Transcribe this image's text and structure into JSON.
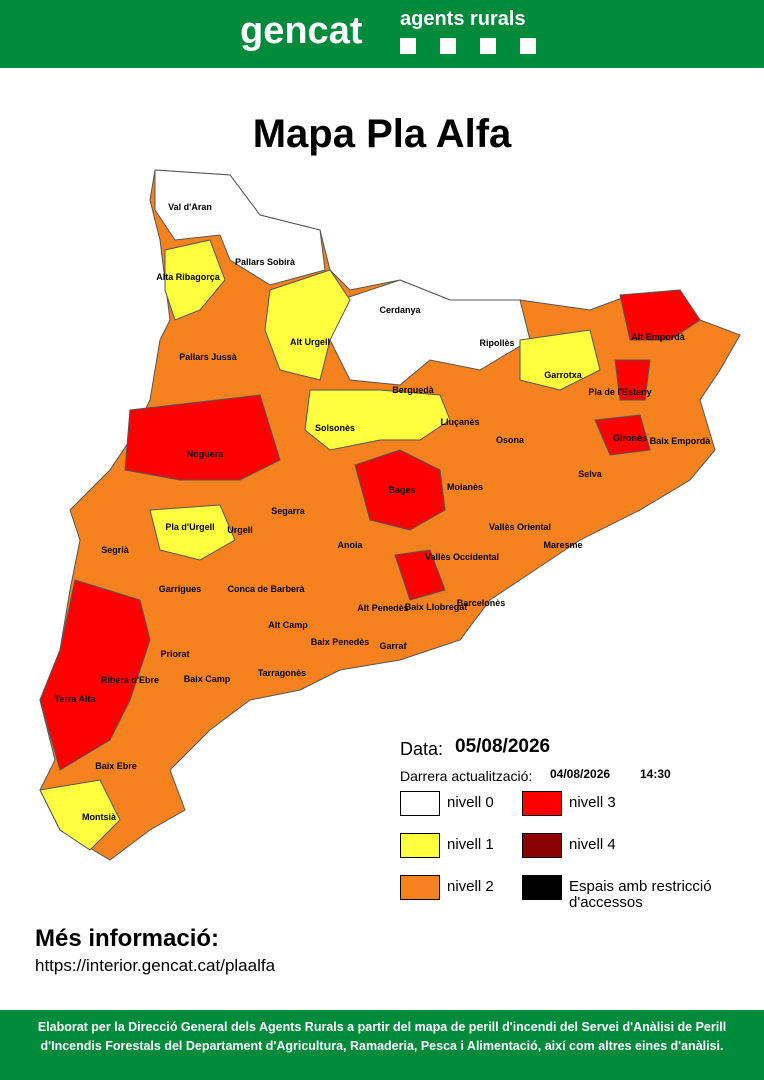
{
  "header": {
    "logo": "gencat",
    "section": "agents rurals"
  },
  "title": "Mapa Pla Alfa",
  "map": {
    "regions": [
      "Val d'Aran",
      "Pallars Sobirà",
      "Alta Ribagorça",
      "Cerdanya",
      "Alt Urgell",
      "Pallars Jussà",
      "Ripollès",
      "Alt Empordà",
      "Garrotxa",
      "Pla de l'Estany",
      "Berguedà",
      "Solsonès",
      "Lluçanès",
      "Osona",
      "Gironès",
      "Baix Empordà",
      "Noguera",
      "Bages",
      "Moianès",
      "Selva",
      "Segarra",
      "Pla d'Urgell",
      "Urgell",
      "Vallès Oriental",
      "Segrià",
      "Anoia",
      "Vallès Occidental",
      "Maresme",
      "Garrigues",
      "Conca de Barberà",
      "Alt Penedès",
      "Baix Llobregat",
      "Barcelonès",
      "Alt Camp",
      "Baix Penedès",
      "Garraf",
      "Priorat",
      "Ribera d'Ebre",
      "Baix Camp",
      "Tarragonès",
      "Terra Alta",
      "Baix Ebre",
      "Montsià"
    ]
  },
  "legend": {
    "date_label": "Data:",
    "date": "05/08/2026",
    "update_label": "Darrera actualització:",
    "update_date": "04/08/2026",
    "update_time": "14:30",
    "items": [
      {
        "label": "nivell 0",
        "color": "#ffffff"
      },
      {
        "label": "nivell 3",
        "color": "#ff0000"
      },
      {
        "label": "nivell 1",
        "color": "#ffff40"
      },
      {
        "label": "nivell 4",
        "color": "#8b0000"
      },
      {
        "label": "nivell 2",
        "color": "#f5821f"
      },
      {
        "label": "Espais amb restricció d'accessos",
        "color": "#000000"
      }
    ]
  },
  "info": {
    "heading": "Més informació:",
    "url": "https://interior.gencat.cat/plaalfa"
  },
  "footer": "Elaborat per la Direcció General dels Agents Rurals a partir del mapa de perill d'incendi del Servei d'Anàlisi de Perill d'Incendis Forestals del Departament d'Agricultura, Ramaderia, Pesca i Alimentació, així com altres eines d'anàlisi."
}
